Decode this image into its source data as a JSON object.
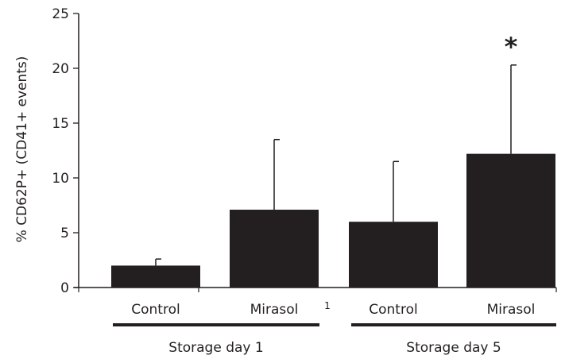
{
  "chart_data": {
    "type": "bar",
    "title": "",
    "xlabel": "",
    "ylabel": "% CD62P+ (CD41+ events)",
    "ylim": [
      0,
      25
    ],
    "yticks": [
      0,
      5,
      10,
      15,
      20,
      25
    ],
    "categories": [
      "Control",
      "Mirasol",
      "Control",
      "Mirasol"
    ],
    "values": [
      2.0,
      7.1,
      6.0,
      12.2
    ],
    "errors": [
      0.6,
      6.4,
      5.5,
      8.1
    ],
    "groups": [
      {
        "label": "Storage day 1",
        "members": [
          0,
          1
        ]
      },
      {
        "label": "Storage day 5",
        "members": [
          2,
          3
        ]
      }
    ],
    "annotations": [
      {
        "text": "*",
        "category_index": 3
      },
      {
        "text": "1",
        "between": [
          1,
          2
        ]
      }
    ],
    "bar_color": "#231f20",
    "grid": false
  }
}
